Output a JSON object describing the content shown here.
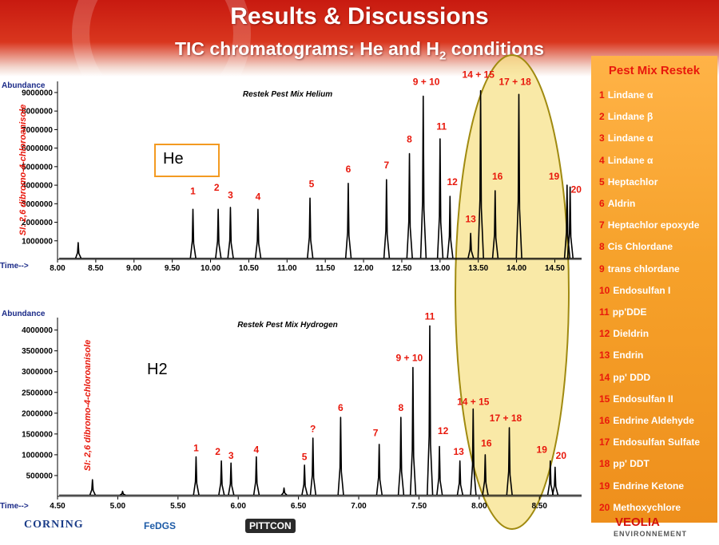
{
  "slide": {
    "title": "Results & Discussions",
    "subtitle_prefix": "TIC chromatograms: He and H",
    "subtitle_sub": "2",
    "subtitle_suffix": " conditions"
  },
  "legend": {
    "title": "Pest Mix Restek",
    "items": [
      {
        "num": "1",
        "name": "Lindane α"
      },
      {
        "num": "2",
        "name": "Lindane β"
      },
      {
        "num": "3",
        "name": "Lindane α"
      },
      {
        "num": "4",
        "name": "Lindane α"
      },
      {
        "num": "5",
        "name": "Heptachlor"
      },
      {
        "num": "6",
        "name": "Aldrin"
      },
      {
        "num": "7",
        "name": "Heptachlor epoxyde"
      },
      {
        "num": "8",
        "name": "Cis Chlordane"
      },
      {
        "num": "9",
        "name": "trans chlordane"
      },
      {
        "num": "10",
        "name": "Endosulfan I"
      },
      {
        "num": "11",
        "name": "pp'DDE"
      },
      {
        "num": "12",
        "name": "Dieldrin"
      },
      {
        "num": "13",
        "name": "Endrin"
      },
      {
        "num": "14",
        "name": "pp' DDD"
      },
      {
        "num": "15",
        "name": "Endosulfan II"
      },
      {
        "num": "16",
        "name": "Endrine Aldehyde"
      },
      {
        "num": "17",
        "name": "Endosulfan Sulfate"
      },
      {
        "num": "18",
        "name": "pp' DDT"
      },
      {
        "num": "19",
        "name": "Endrine Ketone"
      },
      {
        "num": "20",
        "name": "Methoxychlore"
      }
    ]
  },
  "logos": {
    "corning": "CORNING",
    "fedgs": "FeDGS",
    "pittcon": "PITTCON",
    "veolia": "VEOLIA",
    "environnement": "ENVIRONNEMENT"
  },
  "colors": {
    "banner": "#d42a18",
    "legend_panel": "#f6a12a",
    "peak_label": "#e8180c",
    "highlight": "#f7e28a",
    "highlight_border": "#a08a10",
    "axis_label": "#1a2a88",
    "trace": "#000000"
  },
  "chart_data": [
    {
      "type": "line",
      "title": "Restek Pest Mix Helium",
      "condition_label": "He",
      "ylabel": "Abundance",
      "xlabel": "Time-->",
      "internal_standard_label": "SI: 2,6 dibromo-4-chloroanisole",
      "xlim": [
        8.0,
        14.85
      ],
      "ylim": [
        0,
        9600000
      ],
      "x_ticks": [
        8.0,
        8.5,
        9.0,
        9.5,
        10.0,
        10.5,
        11.0,
        11.5,
        12.0,
        12.5,
        13.0,
        13.5,
        14.0,
        14.5
      ],
      "x_tick_labels": [
        "8.00",
        "8.50",
        "9.00",
        "9.50",
        "10.00",
        "10.50",
        "11.00",
        "11.50",
        "12.00",
        "12.50",
        "13.00",
        "13.50",
        "14.00",
        "14.50"
      ],
      "y_ticks": [
        1000000,
        2000000,
        3000000,
        4000000,
        5000000,
        6000000,
        7000000,
        8000000,
        9000000
      ],
      "y_tick_labels": [
        "1000000",
        "2000000",
        "3000000",
        "4000000",
        "5000000",
        "6000000",
        "7000000",
        "8000000",
        "9000000"
      ],
      "highlight_region": [
        13.25,
        14.85
      ],
      "baseline": 60000,
      "peaks": [
        {
          "rt": 8.27,
          "height": 900000
        },
        {
          "rt": 9.77,
          "height": 2700000
        },
        {
          "rt": 10.1,
          "height": 2700000
        },
        {
          "rt": 10.26,
          "height": 2800000
        },
        {
          "rt": 10.62,
          "height": 2700000
        },
        {
          "rt": 11.3,
          "height": 3300000
        },
        {
          "rt": 11.8,
          "height": 4100000
        },
        {
          "rt": 12.3,
          "height": 4300000
        },
        {
          "rt": 12.6,
          "height": 5700000
        },
        {
          "rt": 12.78,
          "height": 8800000
        },
        {
          "rt": 13.0,
          "height": 6500000
        },
        {
          "rt": 13.13,
          "height": 3400000
        },
        {
          "rt": 13.4,
          "height": 1400000
        },
        {
          "rt": 13.53,
          "height": 9100000
        },
        {
          "rt": 13.72,
          "height": 3700000
        },
        {
          "rt": 14.03,
          "height": 8900000
        },
        {
          "rt": 14.66,
          "height": 4000000
        },
        {
          "rt": 14.7,
          "height": 3900000
        }
      ],
      "annotations": [
        {
          "text": "1",
          "x": 9.77,
          "y": 3500000
        },
        {
          "text": "2",
          "x": 10.08,
          "y": 3700000
        },
        {
          "text": "3",
          "x": 10.26,
          "y": 3300000
        },
        {
          "text": "4",
          "x": 10.62,
          "y": 3200000
        },
        {
          "text": "5",
          "x": 11.32,
          "y": 3900000
        },
        {
          "text": "6",
          "x": 11.8,
          "y": 4700000
        },
        {
          "text": "7",
          "x": 12.3,
          "y": 4900000
        },
        {
          "text": "8",
          "x": 12.6,
          "y": 6300000
        },
        {
          "text": "9 + 10",
          "x": 12.82,
          "y": 9400000
        },
        {
          "text": "11",
          "x": 13.02,
          "y": 7000000
        },
        {
          "text": "12",
          "x": 13.16,
          "y": 4000000
        },
        {
          "text": "13",
          "x": 13.4,
          "y": 2000000
        },
        {
          "text": "14 + 15",
          "x": 13.5,
          "y": 9800000
        },
        {
          "text": "16",
          "x": 13.75,
          "y": 4300000
        },
        {
          "text": "17 + 18",
          "x": 13.98,
          "y": 9400000
        },
        {
          "text": "19",
          "x": 14.49,
          "y": 4300000
        },
        {
          "text": "20",
          "x": 14.78,
          "y": 3600000
        }
      ]
    },
    {
      "type": "line",
      "title": "Restek Pest Mix Hydrogen",
      "condition_label": "H2",
      "ylabel": "Abundance",
      "xlabel": "Time-->",
      "internal_standard_label": "SI: 2,6 dibromo-4-chloroanisole",
      "xlim": [
        4.5,
        8.85
      ],
      "ylim": [
        0,
        4300000
      ],
      "x_ticks": [
        4.5,
        5.0,
        5.5,
        6.0,
        6.5,
        7.0,
        7.5,
        8.0,
        8.5
      ],
      "x_tick_labels": [
        "4.50",
        "5.00",
        "5.50",
        "6.00",
        "6.50",
        "7.00",
        "7.50",
        "8.00",
        "8.50"
      ],
      "y_ticks": [
        500000,
        1000000,
        1500000,
        2000000,
        2500000,
        3000000,
        3500000,
        4000000
      ],
      "y_tick_labels": [
        "500000",
        "1000000",
        "1500000",
        "2000000",
        "2500000",
        "3000000",
        "3500000",
        "4000000"
      ],
      "highlight_region": [
        7.95,
        8.85
      ],
      "baseline": 30000,
      "peaks": [
        {
          "rt": 4.79,
          "height": 400000
        },
        {
          "rt": 5.04,
          "height": 120000
        },
        {
          "rt": 5.65,
          "height": 950000
        },
        {
          "rt": 5.86,
          "height": 850000
        },
        {
          "rt": 5.94,
          "height": 800000
        },
        {
          "rt": 6.15,
          "height": 950000
        },
        {
          "rt": 6.38,
          "height": 200000
        },
        {
          "rt": 6.55,
          "height": 750000
        },
        {
          "rt": 6.62,
          "height": 1400000
        },
        {
          "rt": 6.85,
          "height": 1900000
        },
        {
          "rt": 7.17,
          "height": 1250000
        },
        {
          "rt": 7.35,
          "height": 1900000
        },
        {
          "rt": 7.45,
          "height": 3100000
        },
        {
          "rt": 7.59,
          "height": 4100000
        },
        {
          "rt": 7.67,
          "height": 1200000
        },
        {
          "rt": 7.84,
          "height": 850000
        },
        {
          "rt": 7.95,
          "height": 2100000
        },
        {
          "rt": 8.05,
          "height": 1000000
        },
        {
          "rt": 8.25,
          "height": 1650000
        },
        {
          "rt": 8.59,
          "height": 850000
        },
        {
          "rt": 8.63,
          "height": 700000
        }
      ],
      "annotations": [
        {
          "text": "1",
          "x": 5.65,
          "y": 1080000
        },
        {
          "text": "2",
          "x": 5.83,
          "y": 1000000
        },
        {
          "text": "3",
          "x": 5.94,
          "y": 900000
        },
        {
          "text": "4",
          "x": 6.15,
          "y": 1050000
        },
        {
          "text": "5",
          "x": 6.55,
          "y": 870000
        },
        {
          "text": "?",
          "x": 6.62,
          "y": 1550000
        },
        {
          "text": "6",
          "x": 6.85,
          "y": 2050000
        },
        {
          "text": "7",
          "x": 7.14,
          "y": 1450000
        },
        {
          "text": "8",
          "x": 7.35,
          "y": 2050000
        },
        {
          "text": "9 + 10",
          "x": 7.42,
          "y": 3250000
        },
        {
          "text": "11",
          "x": 7.59,
          "y": 4250000
        },
        {
          "text": "12",
          "x": 7.7,
          "y": 1500000
        },
        {
          "text": "13",
          "x": 7.83,
          "y": 1000000
        },
        {
          "text": "14 + 15",
          "x": 7.95,
          "y": 2200000
        },
        {
          "text": "16",
          "x": 8.06,
          "y": 1200000
        },
        {
          "text": "17 + 18",
          "x": 8.22,
          "y": 1800000
        },
        {
          "text": "19",
          "x": 8.52,
          "y": 1050000
        },
        {
          "text": "20",
          "x": 8.68,
          "y": 900000
        }
      ]
    }
  ]
}
